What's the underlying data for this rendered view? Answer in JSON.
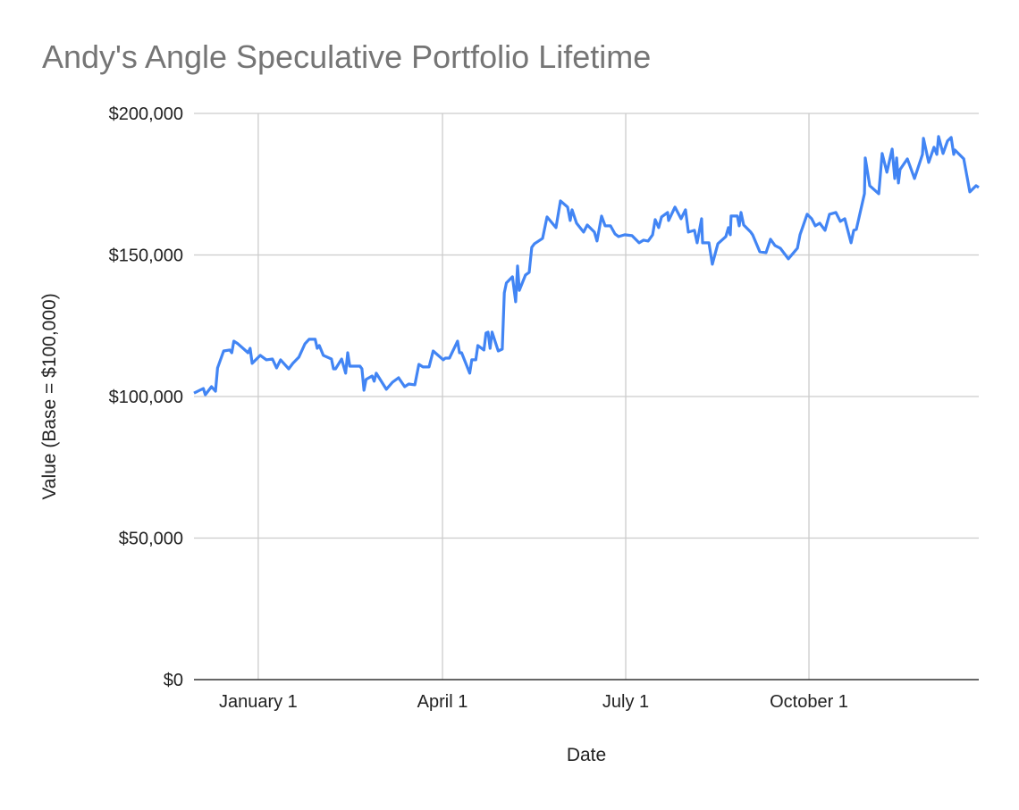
{
  "chart_data": {
    "type": "line",
    "title": "Andy's Angle Speculative Portfolio Lifetime",
    "xlabel": "Date",
    "ylabel": "Value (Base = $100,000)",
    "x_unit": "days since January 1",
    "xlim": [
      -31.6,
      354.3
    ],
    "ylim": [
      0,
      200000
    ],
    "grid": true,
    "legend": "none",
    "x_ticks": [
      {
        "value": 0,
        "label": "January 1"
      },
      {
        "value": 90.6,
        "label": "April 1"
      },
      {
        "value": 180.7,
        "label": "July 1"
      },
      {
        "value": 270.8,
        "label": "October 1"
      }
    ],
    "y_ticks": [
      {
        "value": 0,
        "label": "$0"
      },
      {
        "value": 50000,
        "label": "$50,000"
      },
      {
        "value": 100000,
        "label": "$100,000"
      },
      {
        "value": 150000,
        "label": "$150,000"
      },
      {
        "value": 200000,
        "label": "$200,000"
      }
    ],
    "series": [
      {
        "name": "Value",
        "color": "#4285f4",
        "x": [
          -31.6,
          -27,
          -26,
          -23,
          -21,
          -20,
          -17,
          -14,
          -13,
          -12,
          -10,
          -5,
          -4,
          -3,
          1,
          4,
          7,
          9,
          11,
          15,
          17,
          20,
          23,
          25,
          28,
          29,
          30,
          32,
          36,
          37,
          38,
          41,
          43,
          44,
          45,
          50,
          51,
          52,
          53,
          56,
          57,
          58,
          63,
          66,
          69,
          72,
          74,
          77,
          79,
          81,
          84,
          86,
          91,
          92,
          94,
          98,
          99,
          100,
          104,
          105,
          107,
          108,
          111,
          112,
          113,
          114,
          115,
          118,
          120,
          121,
          122,
          125,
          126.6,
          127.5,
          128.4,
          131.4,
          133.2,
          134.5,
          135.8,
          139.8,
          142,
          146.4,
          148.6,
          152.1,
          153.4,
          154.3,
          156.5,
          160,
          161.8,
          165.3,
          166.6,
          168.8,
          170.6,
          173.2,
          175.4,
          177.2,
          180.2,
          183.8,
          187.3,
          189.5,
          191.7,
          193.9,
          195.2,
          196.9,
          198.3,
          201.3,
          201.8,
          204.9,
          207.9,
          210.1,
          211.5,
          214.5,
          215.8,
          218,
          218.5,
          221.6,
          223.3,
          226,
          229.9,
          231.2,
          232.1,
          232.5,
          235.6,
          236.5,
          237.4,
          238.7,
          242.2,
          243.1,
          246.6,
          249.7,
          251.9,
          254.1,
          256.7,
          260.7,
          265.1,
          266.4,
          269.9,
          272.1,
          273.9,
          276.1,
          278.7,
          280.9,
          284,
          286.2,
          288.4,
          291.5,
          292.8,
          294.1,
          298.1,
          298.5,
          300.7,
          305.1,
          306.8,
          309.1,
          311.7,
          313,
          313.9,
          314.8,
          315.6,
          319.2,
          322.7,
          326.6,
          327.1,
          329.7,
          332.3,
          333.7,
          334.5,
          336.7,
          338.9,
          340.7,
          342,
          342.5,
          346.9,
          349.9,
          353,
          354.3
        ],
        "values": [
          101200,
          102850,
          100640,
          103480,
          101900,
          110110,
          116100,
          116420,
          115470,
          119570,
          118630,
          115470,
          117050,
          111690,
          114530,
          112950,
          113260,
          110110,
          112950,
          109790,
          111690,
          113900,
          118630,
          120210,
          120210,
          117050,
          118000,
          114530,
          113260,
          109790,
          109790,
          113260,
          108220,
          115470,
          110740,
          110740,
          109790,
          102220,
          106010,
          107270,
          105380,
          108220,
          102540,
          105060,
          106640,
          103480,
          104430,
          104120,
          111370,
          110430,
          110430,
          116100,
          112950,
          113580,
          113580,
          119570,
          115470,
          115470,
          108220,
          112950,
          112950,
          118000,
          116420,
          122410,
          122730,
          117050,
          122730,
          116100,
          116740,
          136610,
          140080,
          142290,
          133460,
          146080,
          137500,
          142920,
          143870,
          152700,
          153960,
          155860,
          163430,
          159640,
          169110,
          166900,
          162170,
          165950,
          161220,
          158070,
          160590,
          158070,
          154910,
          163740,
          160270,
          160270,
          157430,
          156490,
          157120,
          156800,
          154280,
          155230,
          154910,
          157120,
          162480,
          159640,
          163430,
          165010,
          162170,
          166900,
          162800,
          165950,
          158070,
          158700,
          154280,
          162800,
          154280,
          154280,
          146710,
          153960,
          156490,
          159640,
          157120,
          163740,
          163740,
          160270,
          165010,
          160590,
          158070,
          157120,
          151120,
          150810,
          155540,
          153330,
          152390,
          148600,
          152390,
          157120,
          164380,
          162800,
          160270,
          161220,
          158700,
          164380,
          165010,
          161850,
          162800,
          154280,
          158700,
          159010,
          171630,
          184250,
          174470,
          171630,
          185830,
          179200,
          187410,
          177000,
          184250,
          175420,
          180150,
          183940,
          177000,
          185510,
          191190,
          182670,
          188040,
          185510,
          191820,
          185830,
          190250,
          191510,
          185510,
          187090,
          183940,
          172260,
          174470,
          173840
        ]
      }
    ]
  }
}
